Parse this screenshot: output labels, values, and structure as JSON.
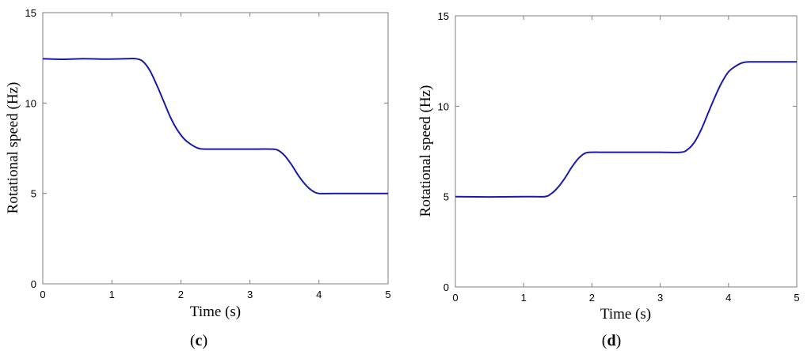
{
  "chart_data": [
    {
      "type": "line",
      "panel_label": "c",
      "xlabel": "Time (s)",
      "ylabel": "Rotational speed (Hz)",
      "xlim": [
        0,
        5
      ],
      "ylim": [
        0,
        15
      ],
      "x_ticks": [
        0,
        1,
        2,
        3,
        4,
        5
      ],
      "y_ticks": [
        0,
        5,
        10,
        15
      ],
      "grid": false,
      "line_color": "#1a1aa8",
      "series": [
        {
          "x": [
            0,
            0.3,
            0.6,
            0.9,
            1.2,
            1.35,
            1.45,
            1.55,
            1.65,
            1.75,
            1.85,
            1.95,
            2.05,
            2.15,
            2.25,
            2.35,
            2.6,
            3.0,
            3.3,
            3.4,
            3.5,
            3.6,
            3.7,
            3.8,
            3.9,
            4.0,
            4.2,
            4.6,
            5.0
          ],
          "y": [
            12.45,
            12.42,
            12.45,
            12.43,
            12.45,
            12.45,
            12.3,
            11.8,
            11.0,
            10.1,
            9.2,
            8.5,
            8.0,
            7.7,
            7.5,
            7.45,
            7.45,
            7.45,
            7.45,
            7.4,
            7.1,
            6.6,
            6.0,
            5.5,
            5.15,
            5.0,
            5.0,
            5.0,
            5.0
          ]
        }
      ]
    },
    {
      "type": "line",
      "panel_label": "d",
      "xlabel": "Time (s)",
      "ylabel": "Rotational speed (Hz)",
      "xlim": [
        0,
        5
      ],
      "ylim": [
        0,
        15
      ],
      "x_ticks": [
        0,
        1,
        2,
        3,
        4,
        5
      ],
      "y_ticks": [
        0,
        5,
        10,
        15
      ],
      "grid": false,
      "line_color": "#1a1aa8",
      "series": [
        {
          "x": [
            0,
            0.5,
            1.0,
            1.3,
            1.4,
            1.5,
            1.6,
            1.7,
            1.8,
            1.9,
            2.0,
            2.2,
            2.6,
            3.0,
            3.3,
            3.4,
            3.5,
            3.6,
            3.7,
            3.8,
            3.9,
            4.0,
            4.1,
            4.2,
            4.3,
            4.4,
            4.6,
            5.0
          ],
          "y": [
            5.0,
            4.98,
            5.0,
            5.0,
            5.15,
            5.5,
            6.0,
            6.6,
            7.1,
            7.4,
            7.45,
            7.45,
            7.45,
            7.45,
            7.45,
            7.6,
            8.0,
            8.7,
            9.6,
            10.5,
            11.3,
            11.9,
            12.2,
            12.4,
            12.45,
            12.45,
            12.45,
            12.45
          ]
        }
      ]
    }
  ]
}
